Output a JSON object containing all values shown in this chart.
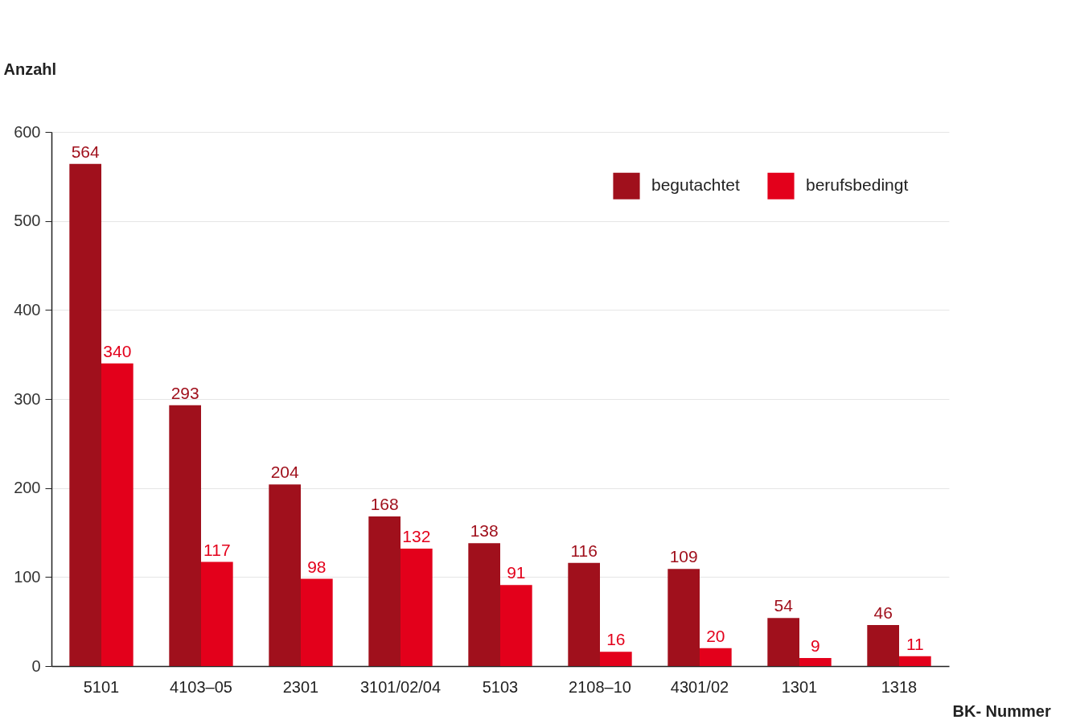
{
  "chart_data": {
    "type": "bar",
    "xlabel": "BK- Nummer",
    "ylabel": "Anzahl",
    "categories": [
      "5101",
      "4103–05",
      "2301",
      "3101/02/04",
      "5103",
      "2108–10",
      "4301/02",
      "1301",
      "1318"
    ],
    "series": [
      {
        "name": "begutachtet",
        "color": "#a0101c",
        "values": [
          564,
          293,
          204,
          168,
          138,
          116,
          109,
          54,
          46
        ]
      },
      {
        "name": "berufsbedingt",
        "color": "#e3001b",
        "values": [
          340,
          117,
          98,
          132,
          91,
          16,
          20,
          9,
          11
        ]
      }
    ],
    "ylim": [
      0,
      600
    ],
    "yticks": [
      0,
      100,
      200,
      300,
      400,
      500,
      600
    ],
    "grid": "y",
    "legend": "top right",
    "data_labels": true
  }
}
